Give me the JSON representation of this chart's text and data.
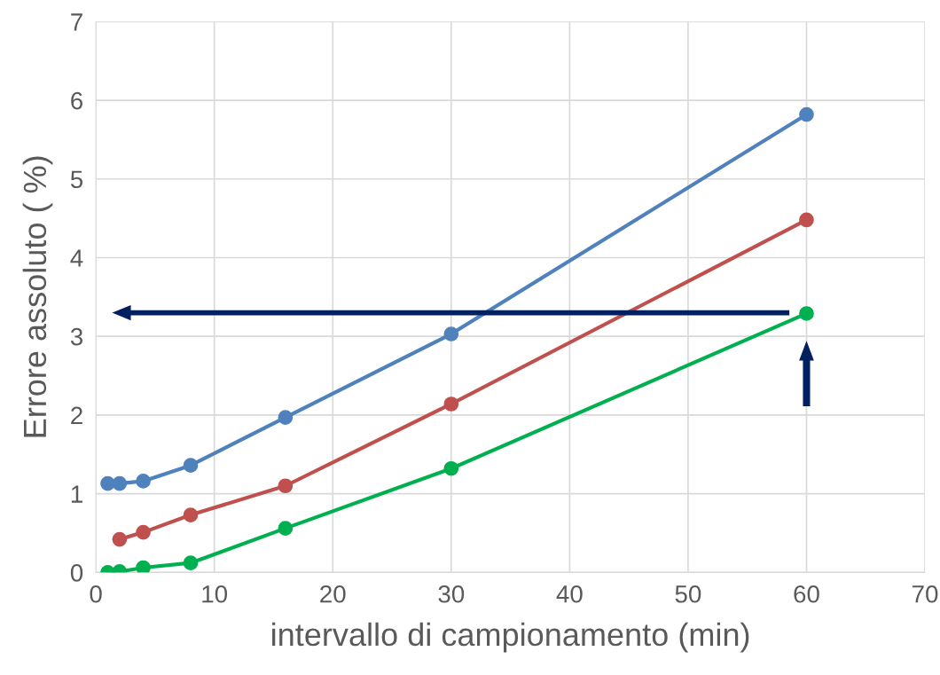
{
  "chart_data": {
    "type": "line",
    "xlabel": "intervallo di campionamento (min)",
    "ylabel": "Errore assoluto ( %)",
    "xlim": [
      0,
      70
    ],
    "xticks": [
      0,
      10,
      20,
      30,
      40,
      50,
      60,
      70
    ],
    "ylim": [
      0,
      7
    ],
    "yticks": [
      0,
      1,
      2,
      3,
      4,
      5,
      6,
      7
    ],
    "grid": true,
    "marker": "circle",
    "line_style": "solid",
    "series": [
      {
        "color": "#4f81bd",
        "x": [
          1,
          2,
          4,
          8,
          16,
          30,
          60
        ],
        "values": [
          1.13,
          1.13,
          1.16,
          1.36,
          1.97,
          3.03,
          5.82
        ]
      },
      {
        "color": "#c0504d",
        "x": [
          2,
          4,
          8,
          16,
          30,
          60
        ],
        "values": [
          0.42,
          0.51,
          0.73,
          1.1,
          2.14,
          4.48
        ]
      },
      {
        "color": "#00b050",
        "x": [
          1,
          2,
          4,
          8,
          16,
          30,
          60
        ],
        "values": [
          0.0,
          0.01,
          0.06,
          0.12,
          0.56,
          1.32,
          3.29
        ]
      }
    ]
  }
}
